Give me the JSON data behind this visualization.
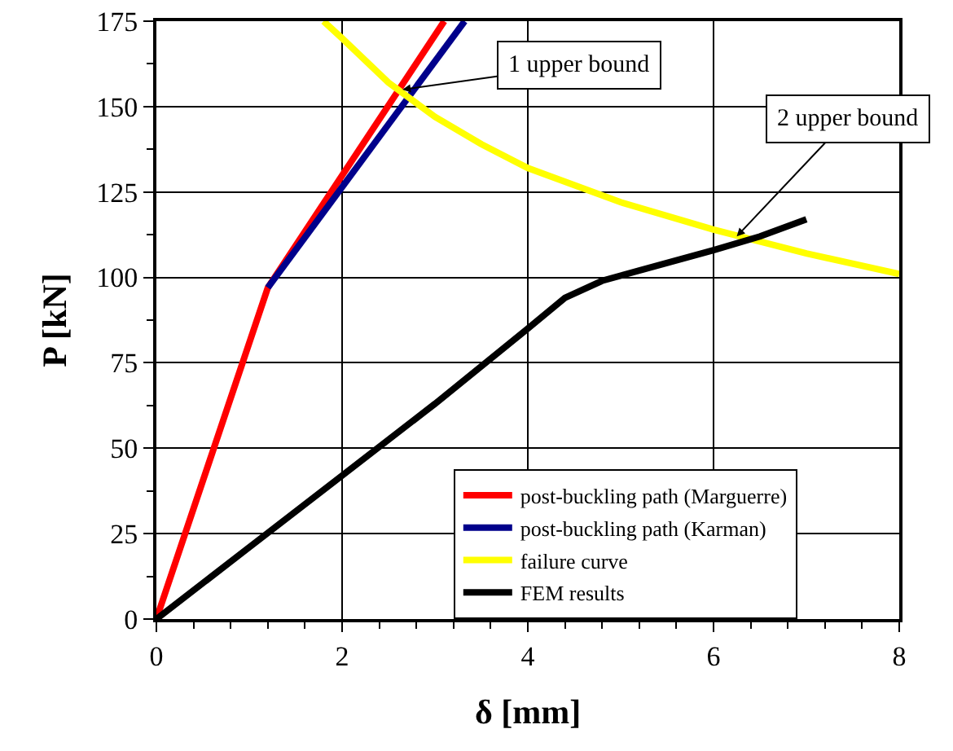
{
  "chart_data": {
    "type": "line",
    "xlabel": "δ [mm]",
    "ylabel": "P [kN]",
    "xlim": [
      0,
      8
    ],
    "xticks": [
      0,
      2,
      4,
      6,
      8
    ],
    "ylim": [
      0,
      175
    ],
    "yticks": [
      0,
      25,
      50,
      75,
      100,
      125,
      150,
      175
    ],
    "grid": true,
    "legend": "bottom right",
    "marker": "none",
    "line_style": "solid",
    "series": [
      {
        "name": "post-buckling path (Marguerre)",
        "color": "#ff0000",
        "x": [
          0,
          1.2,
          3.1
        ],
        "values": [
          0,
          97,
          175
        ]
      },
      {
        "name": "post-buckling path (Karman)",
        "color": "#00008b",
        "x": [
          1.2,
          3.32
        ],
        "values": [
          97,
          175
        ]
      },
      {
        "name": "failure curve",
        "color": "#ffff00",
        "x": [
          1.8,
          2,
          2.5,
          3,
          3.5,
          4,
          5,
          6,
          7,
          8
        ],
        "values": [
          175,
          170,
          157,
          147,
          139,
          132,
          122,
          114,
          107,
          101
        ]
      },
      {
        "name": "FEM results",
        "color": "#000000",
        "x": [
          0,
          1,
          2,
          3,
          4,
          4.4,
          4.8,
          5.2,
          6,
          6.5,
          7
        ],
        "values": [
          0,
          21,
          42,
          63,
          85,
          94,
          99,
          102,
          108,
          112,
          117
        ]
      }
    ],
    "annotations": [
      {
        "text": "1 upper bound",
        "x": 2.65,
        "y": 155
      },
      {
        "text": "2 upper bound",
        "x": 6.25,
        "y": 112
      }
    ]
  }
}
